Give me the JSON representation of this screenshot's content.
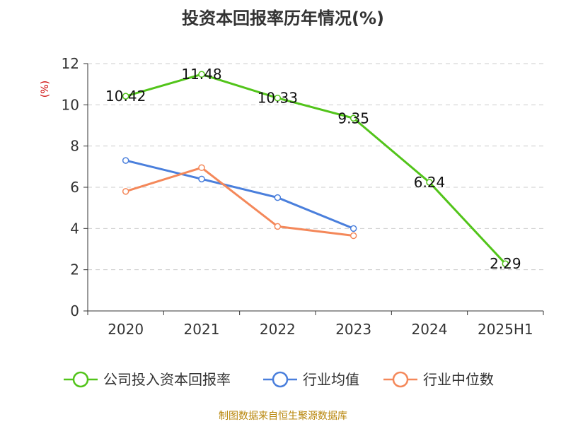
{
  "chart_data": {
    "type": "line",
    "title": "投资本回报率历年情况(%)",
    "ylabel": "(%)",
    "xlabel": "",
    "categories": [
      "2020",
      "2021",
      "2022",
      "2023",
      "2024",
      "2025H1"
    ],
    "ylim": [
      0,
      12
    ],
    "yticks": [
      0,
      2,
      4,
      6,
      8,
      10,
      12
    ],
    "grid": true,
    "legend_position": "bottom",
    "series": [
      {
        "name": "公司投入资本回报率",
        "color": "#52c41a",
        "values": [
          10.42,
          11.48,
          10.33,
          9.35,
          6.24,
          2.29
        ],
        "labels": [
          "10.42",
          "11.48",
          "10.33",
          "9.35",
          "6.24",
          "2.29"
        ]
      },
      {
        "name": "行业均值",
        "color": "#4a7fdc",
        "values": [
          7.3,
          6.4,
          5.5,
          4.0,
          null,
          null
        ]
      },
      {
        "name": "行业中位数",
        "color": "#f4885a",
        "values": [
          5.8,
          6.95,
          4.1,
          3.65,
          null,
          null
        ]
      }
    ]
  },
  "source": "制图数据来自恒生聚源数据库"
}
